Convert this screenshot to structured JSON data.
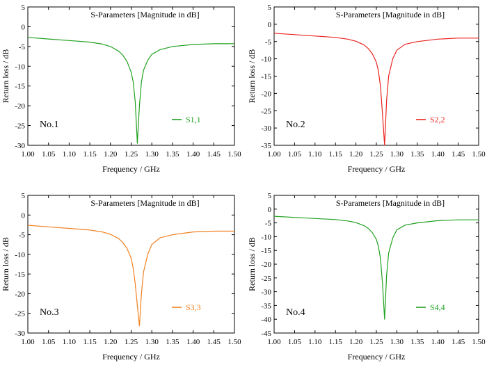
{
  "chart_data": [
    {
      "type": "line",
      "title": "S-Parameters [Magnitude in dB]",
      "xlabel": "Frequency / GHz",
      "ylabel": "Return loss / dB",
      "xlim": [
        1.0,
        1.5
      ],
      "ylim": [
        -30,
        5
      ],
      "xticks": [
        "1.00",
        "1.05",
        "1.10",
        "1.15",
        "1.20",
        "1.25",
        "1.30",
        "1.35",
        "1.40",
        "1.45",
        "1.50"
      ],
      "yticks": [
        "5",
        "0",
        "-5",
        "-10",
        "-15",
        "-20",
        "-25",
        "-30"
      ],
      "panel_label": "No.1",
      "series": [
        {
          "name": "S1,1",
          "color": "#1fa01f",
          "x": [
            1.0,
            1.05,
            1.1,
            1.15,
            1.18,
            1.2,
            1.22,
            1.23,
            1.24,
            1.25,
            1.255,
            1.26,
            1.265,
            1.27,
            1.275,
            1.28,
            1.29,
            1.3,
            1.32,
            1.35,
            1.4,
            1.45,
            1.5
          ],
          "values": [
            -2.7,
            -3.1,
            -3.5,
            -3.9,
            -4.4,
            -5.0,
            -6.2,
            -7.2,
            -8.8,
            -11.5,
            -14.0,
            -19.0,
            -29.5,
            -20.0,
            -14.0,
            -11.0,
            -8.5,
            -7.0,
            -5.8,
            -5.0,
            -4.5,
            -4.3,
            -4.3
          ]
        }
      ]
    },
    {
      "type": "line",
      "title": "S-Parameters [Magnitude in dB]",
      "xlabel": "Frequency / GHz",
      "ylabel": "Return loss / dB",
      "xlim": [
        1.0,
        1.5
      ],
      "ylim": [
        -35,
        5
      ],
      "xticks": [
        "1.00",
        "1.05",
        "1.10",
        "1.15",
        "1.20",
        "1.25",
        "1.30",
        "1.35",
        "1.40",
        "1.45",
        "1.50"
      ],
      "yticks": [
        "5",
        "0",
        "-5",
        "-10",
        "-15",
        "-20",
        "-25",
        "-30",
        "-35"
      ],
      "panel_label": "No.2",
      "series": [
        {
          "name": "S2,2",
          "color": "#e8231e",
          "x": [
            1.0,
            1.05,
            1.1,
            1.15,
            1.18,
            1.2,
            1.22,
            1.23,
            1.24,
            1.25,
            1.255,
            1.26,
            1.265,
            1.27,
            1.275,
            1.28,
            1.29,
            1.3,
            1.32,
            1.35,
            1.4,
            1.45,
            1.5
          ],
          "values": [
            -2.6,
            -3.0,
            -3.4,
            -3.8,
            -4.3,
            -4.9,
            -6.0,
            -7.0,
            -8.5,
            -11.0,
            -13.5,
            -18.0,
            -26.0,
            -35.0,
            -22.0,
            -15.0,
            -10.0,
            -7.5,
            -5.8,
            -5.0,
            -4.3,
            -4.0,
            -4.0
          ]
        }
      ]
    },
    {
      "type": "line",
      "title": "S-Parameters [Magnitude in dB]",
      "xlabel": "Frequency / GHz",
      "ylabel": "Return loss / dB",
      "xlim": [
        1.0,
        1.5
      ],
      "ylim": [
        -30,
        5
      ],
      "xticks": [
        "1.00",
        "1.05",
        "1.10",
        "1.15",
        "1.20",
        "1.25",
        "1.30",
        "1.35",
        "1.40",
        "1.45",
        "1.50"
      ],
      "yticks": [
        "5",
        "0",
        "-5",
        "-10",
        "-15",
        "-20",
        "-25",
        "-30"
      ],
      "panel_label": "No.3",
      "series": [
        {
          "name": "S3,3",
          "color": "#f28020",
          "x": [
            1.0,
            1.05,
            1.1,
            1.15,
            1.18,
            1.2,
            1.22,
            1.23,
            1.24,
            1.25,
            1.255,
            1.26,
            1.265,
            1.27,
            1.275,
            1.28,
            1.29,
            1.3,
            1.32,
            1.35,
            1.4,
            1.45,
            1.5
          ],
          "values": [
            -2.6,
            -3.0,
            -3.4,
            -3.8,
            -4.3,
            -4.9,
            -6.0,
            -7.0,
            -8.5,
            -11.0,
            -13.5,
            -17.5,
            -23.0,
            -28.2,
            -20.0,
            -14.5,
            -10.0,
            -7.5,
            -5.8,
            -5.0,
            -4.3,
            -4.1,
            -4.1
          ]
        }
      ]
    },
    {
      "type": "line",
      "title": "S-Parameters [Magnitude in dB]",
      "xlabel": "Frequency / GHz",
      "ylabel": "Return loss / dB",
      "xlim": [
        1.0,
        1.5
      ],
      "ylim": [
        -45,
        5
      ],
      "xticks": [
        "1.00",
        "1.05",
        "1.10",
        "1.15",
        "1.20",
        "1.25",
        "1.30",
        "1.35",
        "1.40",
        "1.45",
        "1.50"
      ],
      "yticks": [
        "5",
        "0",
        "-5",
        "-10",
        "-15",
        "-20",
        "-25",
        "-30",
        "-35",
        "-40",
        "-45"
      ],
      "panel_label": "No.4",
      "series": [
        {
          "name": "S4,4",
          "color": "#1fa01f",
          "x": [
            1.0,
            1.05,
            1.1,
            1.15,
            1.18,
            1.2,
            1.22,
            1.23,
            1.24,
            1.25,
            1.255,
            1.26,
            1.265,
            1.27,
            1.275,
            1.28,
            1.29,
            1.3,
            1.32,
            1.35,
            1.4,
            1.45,
            1.5
          ],
          "values": [
            -2.6,
            -3.0,
            -3.4,
            -3.8,
            -4.3,
            -4.9,
            -6.0,
            -7.0,
            -8.5,
            -11.0,
            -13.5,
            -18.0,
            -27.0,
            -40.0,
            -24.0,
            -16.0,
            -10.5,
            -7.5,
            -5.8,
            -5.0,
            -4.2,
            -3.9,
            -3.9
          ]
        }
      ]
    }
  ]
}
